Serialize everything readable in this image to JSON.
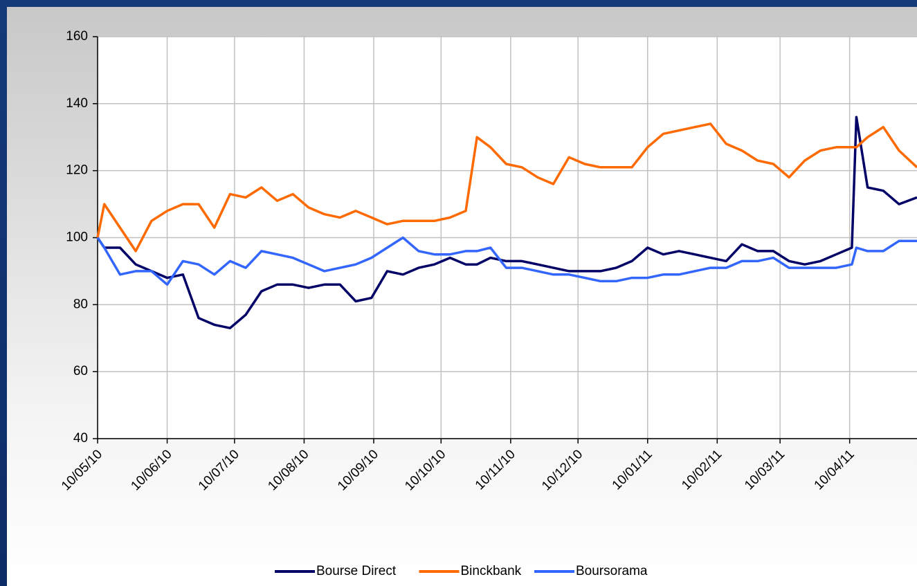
{
  "chart_data": {
    "type": "line",
    "x": [
      "2010-05-10",
      "2010-05-13",
      "2010-05-20",
      "2010-05-27",
      "2010-06-03",
      "2010-06-10",
      "2010-06-17",
      "2010-06-24",
      "2010-07-01",
      "2010-07-08",
      "2010-07-15",
      "2010-07-22",
      "2010-07-29",
      "2010-08-05",
      "2010-08-12",
      "2010-08-19",
      "2010-08-26",
      "2010-09-02",
      "2010-09-09",
      "2010-09-16",
      "2010-09-23",
      "2010-09-30",
      "2010-10-07",
      "2010-10-14",
      "2010-10-21",
      "2010-10-26",
      "2010-11-01",
      "2010-11-08",
      "2010-11-15",
      "2010-11-22",
      "2010-11-29",
      "2010-12-06",
      "2010-12-13",
      "2010-12-20",
      "2010-12-27",
      "2011-01-03",
      "2011-01-10",
      "2011-01-17",
      "2011-01-24",
      "2011-01-31",
      "2011-02-07",
      "2011-02-14",
      "2011-02-21",
      "2011-02-28",
      "2011-03-07",
      "2011-03-14",
      "2011-03-21",
      "2011-03-28",
      "2011-04-04",
      "2011-04-11",
      "2011-04-13",
      "2011-04-18",
      "2011-04-25",
      "2011-05-02",
      "2011-05-10"
    ],
    "series": [
      {
        "name": "Bourse Direct",
        "color": "#000066",
        "values": [
          100,
          97,
          97,
          92,
          90,
          88,
          89,
          76,
          74,
          73,
          77,
          84,
          86,
          86,
          85,
          86,
          86,
          81,
          82,
          90,
          89,
          91,
          92,
          94,
          92,
          92,
          94,
          93,
          93,
          92,
          91,
          90,
          90,
          90,
          91,
          93,
          97,
          95,
          96,
          95,
          94,
          93,
          98,
          96,
          96,
          93,
          92,
          93,
          95,
          97,
          136,
          115,
          114,
          110,
          112
        ]
      },
      {
        "name": "Binckbank",
        "color": "#ff6a00",
        "values": [
          100,
          110,
          103,
          96,
          105,
          108,
          110,
          110,
          103,
          113,
          112,
          115,
          111,
          113,
          109,
          107,
          106,
          108,
          106,
          104,
          105,
          105,
          105,
          106,
          108,
          130,
          127,
          122,
          121,
          118,
          116,
          124,
          122,
          121,
          121,
          121,
          127,
          131,
          132,
          133,
          134,
          128,
          126,
          123,
          122,
          118,
          123,
          126,
          127,
          127,
          127,
          130,
          133,
          126,
          121
        ]
      },
      {
        "name": "Boursorama",
        "color": "#3366ff",
        "values": [
          100,
          97,
          89,
          90,
          90,
          86,
          93,
          92,
          89,
          93,
          91,
          96,
          95,
          94,
          92,
          90,
          91,
          92,
          94,
          97,
          100,
          96,
          95,
          95,
          96,
          96,
          97,
          91,
          91,
          90,
          89,
          89,
          88,
          87,
          87,
          88,
          88,
          89,
          89,
          90,
          91,
          91,
          93,
          93,
          94,
          91,
          91,
          91,
          91,
          92,
          97,
          96,
          96,
          99,
          99
        ]
      }
    ],
    "xlim": [
      "2010-05-10",
      "2011-05-10"
    ],
    "xticks": [
      {
        "value": "2010-05-10",
        "label": "10/05/10"
      },
      {
        "value": "2010-06-10",
        "label": "10/06/10"
      },
      {
        "value": "2010-07-10",
        "label": "10/07/10"
      },
      {
        "value": "2010-08-10",
        "label": "10/08/10"
      },
      {
        "value": "2010-09-10",
        "label": "10/09/10"
      },
      {
        "value": "2010-10-10",
        "label": "10/10/10"
      },
      {
        "value": "2010-11-10",
        "label": "10/11/10"
      },
      {
        "value": "2010-12-10",
        "label": "10/12/10"
      },
      {
        "value": "2011-01-10",
        "label": "10/01/11"
      },
      {
        "value": "2011-02-10",
        "label": "10/02/11"
      },
      {
        "value": "2011-03-10",
        "label": "10/03/11"
      },
      {
        "value": "2011-04-10",
        "label": "10/04/11"
      }
    ],
    "ylim": [
      40,
      160
    ],
    "yticks": [
      40,
      60,
      80,
      100,
      120,
      140,
      160
    ],
    "grid": true,
    "legend": "bottom"
  }
}
